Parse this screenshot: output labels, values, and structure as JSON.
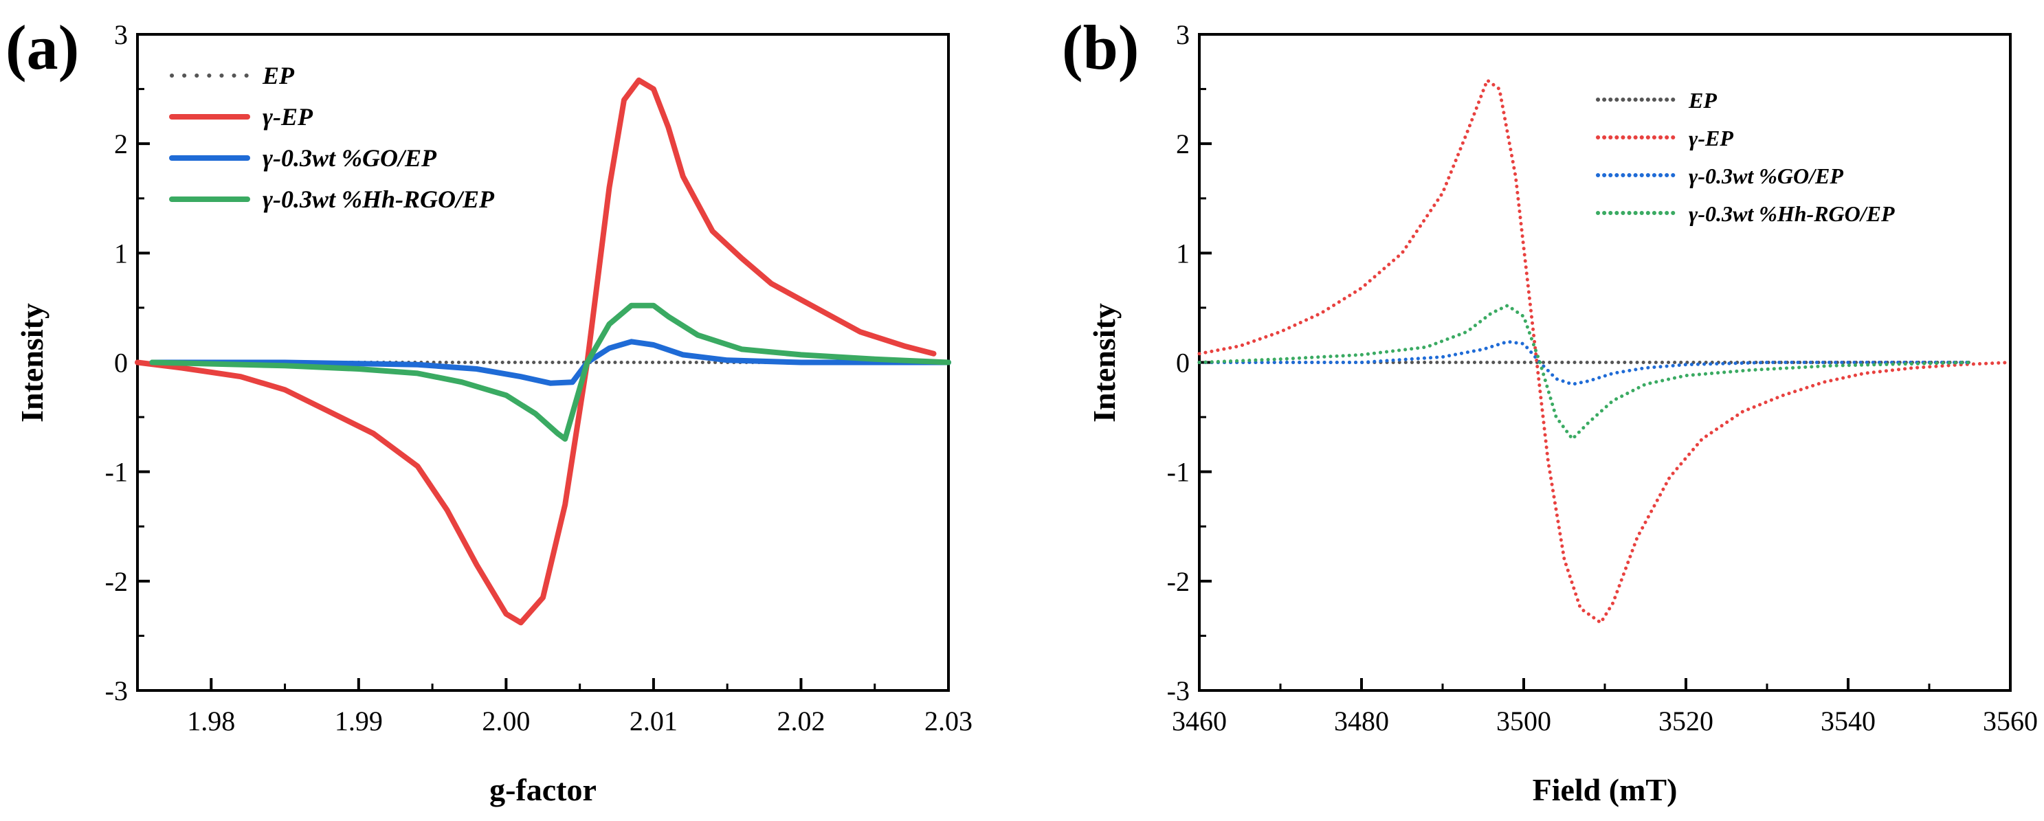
{
  "chart_data": [
    {
      "panel_label": "(a)",
      "type": "line",
      "xlabel": "g-factor",
      "ylabel": "Intensity",
      "xlim": [
        1.975,
        2.03
      ],
      "ylim": [
        -3,
        3
      ],
      "xticks": [
        "1.98",
        "1.99",
        "2.00",
        "2.01",
        "2.02",
        "2.03"
      ],
      "xtick_values": [
        1.98,
        1.99,
        2.0,
        2.01,
        2.02,
        2.03
      ],
      "yticks": [
        "-3",
        "-2",
        "-1",
        "0",
        "1",
        "2",
        "3"
      ],
      "ytick_values": [
        -3,
        -2,
        -1,
        0,
        1,
        2,
        3
      ],
      "legend_position": "top-left",
      "series": [
        {
          "name": "EP",
          "color": "#555555",
          "style": "dotted",
          "x": [
            1.976,
            1.985,
            1.995,
            2.0,
            2.004,
            2.005,
            2.006,
            2.01,
            2.015,
            2.02,
            2.025,
            2.03
          ],
          "y": [
            0,
            0,
            0,
            0,
            0,
            0,
            0,
            0,
            0,
            0,
            0,
            0
          ]
        },
        {
          "name": "γ-EP",
          "color": "#e8413f",
          "style": "solid",
          "x": [
            1.975,
            1.978,
            1.982,
            1.985,
            1.988,
            1.991,
            1.994,
            1.996,
            1.998,
            2.0,
            2.001,
            2.0025,
            2.004,
            2.0055,
            2.007,
            2.008,
            2.009,
            2.01,
            2.011,
            2.012,
            2.014,
            2.016,
            2.018,
            2.021,
            2.024,
            2.027,
            2.029
          ],
          "y": [
            0.0,
            -0.05,
            -0.13,
            -0.25,
            -0.45,
            -0.65,
            -0.95,
            -1.35,
            -1.85,
            -2.3,
            -2.38,
            -2.15,
            -1.3,
            0.0,
            1.6,
            2.4,
            2.58,
            2.5,
            2.15,
            1.7,
            1.2,
            0.95,
            0.72,
            0.5,
            0.28,
            0.15,
            0.08
          ]
        },
        {
          "name": "γ-0.3wt %GO/EP",
          "color": "#1f6bd6",
          "style": "solid",
          "x": [
            1.976,
            1.985,
            1.994,
            1.998,
            2.001,
            2.003,
            2.0045,
            2.0055,
            2.007,
            2.0085,
            2.01,
            2.012,
            2.015,
            2.02,
            2.025,
            2.03
          ],
          "y": [
            0.0,
            0.0,
            -0.02,
            -0.06,
            -0.13,
            -0.19,
            -0.18,
            0.0,
            0.13,
            0.19,
            0.16,
            0.07,
            0.02,
            0.0,
            0.0,
            0.0
          ]
        },
        {
          "name": "γ-0.3wt %Hh-RGO/EP",
          "color": "#3aaa62",
          "style": "solid",
          "x": [
            1.976,
            1.985,
            1.99,
            1.994,
            1.997,
            2.0,
            2.002,
            2.0035,
            2.004,
            2.0055,
            2.007,
            2.0085,
            2.01,
            2.011,
            2.013,
            2.016,
            2.02,
            2.025,
            2.03
          ],
          "y": [
            0.0,
            -0.03,
            -0.06,
            -0.1,
            -0.18,
            -0.3,
            -0.47,
            -0.65,
            -0.7,
            0.0,
            0.35,
            0.52,
            0.52,
            0.42,
            0.25,
            0.12,
            0.07,
            0.03,
            0.0
          ]
        }
      ]
    },
    {
      "panel_label": "(b)",
      "type": "line",
      "xlabel": "Field (mT)",
      "ylabel": "Intensity",
      "xlim": [
        3460,
        3560
      ],
      "ylim": [
        -3,
        3
      ],
      "xticks": [
        "3460",
        "3480",
        "3500",
        "3520",
        "3540",
        "3560"
      ],
      "xtick_values": [
        3460,
        3480,
        3500,
        3520,
        3540,
        3560
      ],
      "yticks": [
        "-3",
        "-2",
        "-1",
        "0",
        "1",
        "2",
        "3"
      ],
      "ytick_values": [
        -3,
        -2,
        -1,
        0,
        1,
        2,
        3
      ],
      "legend_position": "top-right",
      "series": [
        {
          "name": "EP",
          "color": "#555555",
          "style": "dotted",
          "x": [
            3460,
            3480,
            3500,
            3520,
            3540,
            3555
          ],
          "y": [
            0,
            0,
            0,
            0,
            0,
            0
          ]
        },
        {
          "name": "γ-EP",
          "color": "#e8413f",
          "style": "dotted",
          "x": [
            3460,
            3465,
            3470,
            3475,
            3480,
            3485,
            3490,
            3493,
            3495.5,
            3497,
            3499,
            3501,
            3503,
            3505,
            3507,
            3509.5,
            3511,
            3514,
            3518,
            3522,
            3527,
            3532,
            3537,
            3542,
            3548,
            3554,
            3560
          ],
          "y": [
            0.08,
            0.15,
            0.28,
            0.45,
            0.68,
            1.0,
            1.55,
            2.1,
            2.58,
            2.5,
            1.7,
            0.4,
            -0.9,
            -1.8,
            -2.25,
            -2.38,
            -2.2,
            -1.6,
            -1.05,
            -0.7,
            -0.45,
            -0.3,
            -0.18,
            -0.1,
            -0.05,
            -0.02,
            0.0
          ]
        },
        {
          "name": "γ-0.3wt %GO/EP",
          "color": "#1f6bd6",
          "style": "dotted",
          "x": [
            3460,
            3480,
            3490,
            3495,
            3498,
            3500,
            3502,
            3504,
            3506,
            3508,
            3511,
            3515,
            3520,
            3530,
            3555
          ],
          "y": [
            0.0,
            0.0,
            0.05,
            0.12,
            0.19,
            0.17,
            0.0,
            -0.15,
            -0.2,
            -0.17,
            -0.1,
            -0.05,
            -0.02,
            0.0,
            0.0
          ]
        },
        {
          "name": "γ-0.3wt %Hh-RGO/EP",
          "color": "#3aaa62",
          "style": "dotted",
          "x": [
            3460,
            3470,
            3480,
            3488,
            3493,
            3496,
            3498,
            3500,
            3502,
            3504,
            3506,
            3508,
            3511,
            3515,
            3520,
            3528,
            3538,
            3555
          ],
          "y": [
            0.0,
            0.03,
            0.07,
            0.14,
            0.28,
            0.45,
            0.52,
            0.42,
            0.0,
            -0.5,
            -0.7,
            -0.55,
            -0.35,
            -0.2,
            -0.12,
            -0.07,
            -0.03,
            0.0
          ]
        }
      ]
    }
  ]
}
